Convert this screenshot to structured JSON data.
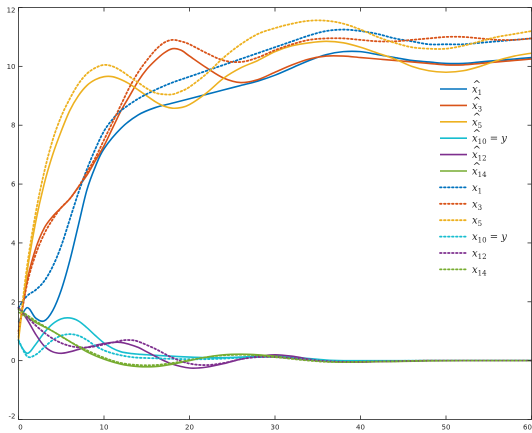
{
  "chart_data": {
    "type": "line",
    "title": "",
    "xlabel": "",
    "ylabel": "",
    "xlim": [
      0,
      60
    ],
    "ylim": [
      -2,
      12
    ],
    "x_ticks": [
      "0",
      "10",
      "20",
      "30",
      "40",
      "50",
      "60"
    ],
    "y_ticks": [
      "-2",
      "0",
      "2",
      "4",
      "6",
      "8",
      "10",
      "12"
    ],
    "grid": false,
    "legend_position": "right",
    "series": [
      {
        "name": "x̂1",
        "base": "x",
        "hat": true,
        "sub": "1",
        "suffix": "",
        "color": "#0072BD",
        "dash": "solid",
        "x": [
          0,
          1,
          2,
          3,
          4,
          5,
          6,
          7,
          8,
          9,
          10,
          12,
          14,
          16,
          18,
          20,
          22,
          24,
          26,
          28,
          30,
          32,
          34,
          36,
          38,
          40,
          42,
          44,
          46,
          48,
          50,
          52,
          54,
          56,
          58,
          60
        ],
        "y": [
          1.3,
          1.8,
          1.45,
          1.35,
          1.7,
          2.4,
          3.4,
          4.6,
          5.8,
          6.6,
          7.2,
          7.9,
          8.35,
          8.6,
          8.75,
          8.9,
          9.05,
          9.2,
          9.35,
          9.5,
          9.7,
          9.95,
          10.2,
          10.4,
          10.5,
          10.5,
          10.4,
          10.3,
          10.2,
          10.15,
          10.1,
          10.1,
          10.15,
          10.2,
          10.25,
          10.3
        ]
      },
      {
        "name": "x̂3",
        "base": "x",
        "hat": true,
        "sub": "3",
        "suffix": "",
        "color": "#D95319",
        "dash": "solid",
        "x": [
          0,
          1,
          2,
          3,
          4,
          5,
          6,
          7,
          8,
          9,
          10,
          11,
          12,
          13,
          14,
          15,
          16,
          17,
          18,
          19,
          20,
          22,
          24,
          26,
          28,
          30,
          32,
          34,
          36,
          38,
          40,
          42,
          44,
          46,
          48,
          50,
          52,
          54,
          56,
          58,
          60
        ],
        "y": [
          0.9,
          2.7,
          3.8,
          4.5,
          4.9,
          5.2,
          5.5,
          5.9,
          6.3,
          6.8,
          7.3,
          7.9,
          8.5,
          9.0,
          9.5,
          9.9,
          10.2,
          10.45,
          10.6,
          10.55,
          10.35,
          9.95,
          9.6,
          9.45,
          9.55,
          9.8,
          10.05,
          10.25,
          10.35,
          10.35,
          10.3,
          10.25,
          10.2,
          10.15,
          10.1,
          10.05,
          10.05,
          10.1,
          10.15,
          10.2,
          10.25
        ]
      },
      {
        "name": "x̂5",
        "base": "x",
        "hat": true,
        "sub": "5",
        "suffix": "",
        "color": "#EDB120",
        "dash": "solid",
        "x": [
          0,
          1,
          2,
          3,
          4,
          5,
          6,
          7,
          8,
          9,
          10,
          11,
          12,
          13,
          14,
          15,
          16,
          17,
          18,
          19,
          20,
          22,
          24,
          26,
          28,
          30,
          32,
          34,
          36,
          38,
          40,
          42,
          44,
          46,
          48,
          50,
          52,
          54,
          56,
          58,
          60
        ],
        "y": [
          0.7,
          3.0,
          4.7,
          6.0,
          7.0,
          7.8,
          8.5,
          9.0,
          9.35,
          9.55,
          9.65,
          9.65,
          9.55,
          9.4,
          9.2,
          9.0,
          8.8,
          8.65,
          8.58,
          8.6,
          8.7,
          9.1,
          9.6,
          9.95,
          10.2,
          10.5,
          10.7,
          10.8,
          10.85,
          10.8,
          10.65,
          10.45,
          10.25,
          10.0,
          9.85,
          9.8,
          9.85,
          10.0,
          10.2,
          10.35,
          10.45
        ]
      },
      {
        "name": "x̂10 = y",
        "base": "x",
        "hat": true,
        "sub": "10",
        "suffix": " = y",
        "color": "#17BECF",
        "dash": "solid",
        "x": [
          0,
          1,
          2,
          3,
          4,
          5,
          6,
          7,
          8,
          9,
          10,
          11,
          12,
          13,
          14,
          15,
          16,
          18,
          20,
          22,
          24,
          26,
          28,
          30,
          32,
          34,
          36,
          38,
          40,
          42,
          44,
          46,
          48,
          50,
          52,
          54,
          56,
          58,
          60
        ],
        "y": [
          0.65,
          0.25,
          0.55,
          0.95,
          1.25,
          1.42,
          1.45,
          1.35,
          1.12,
          0.85,
          0.6,
          0.42,
          0.3,
          0.25,
          0.22,
          0.2,
          0.18,
          0.15,
          0.12,
          0.1,
          0.1,
          0.12,
          0.15,
          0.16,
          0.13,
          0.07,
          0.02,
          0.0,
          0.0,
          0.0,
          0.0,
          0.0,
          0.0,
          0.0,
          0.0,
          0.0,
          0.0,
          0.0,
          0.0
        ]
      },
      {
        "name": "x̂12",
        "base": "x",
        "hat": true,
        "sub": "12",
        "suffix": "",
        "color": "#7E2F8E",
        "dash": "solid",
        "x": [
          0,
          1,
          2,
          3,
          4,
          5,
          6,
          7,
          8,
          9,
          10,
          11,
          12,
          13,
          14,
          15,
          16,
          17,
          18,
          19,
          20,
          21,
          22,
          24,
          26,
          28,
          30,
          32,
          34,
          36,
          38,
          40,
          42,
          44,
          46,
          48,
          50,
          52,
          54,
          56,
          58,
          60
        ],
        "y": [
          1.8,
          1.4,
          0.9,
          0.5,
          0.3,
          0.25,
          0.3,
          0.38,
          0.45,
          0.52,
          0.58,
          0.62,
          0.62,
          0.55,
          0.45,
          0.3,
          0.15,
          0.0,
          -0.12,
          -0.2,
          -0.25,
          -0.25,
          -0.22,
          -0.1,
          0.05,
          0.15,
          0.2,
          0.15,
          0.05,
          -0.02,
          -0.05,
          -0.05,
          -0.03,
          -0.02,
          -0.01,
          0.0,
          0.0,
          0.0,
          0.0,
          0.0,
          0.0,
          0.0
        ]
      },
      {
        "name": "x̂14",
        "base": "x",
        "hat": true,
        "sub": "14",
        "suffix": "",
        "color": "#77AC30",
        "dash": "solid",
        "x": [
          0,
          2,
          4,
          6,
          8,
          10,
          12,
          14,
          16,
          18,
          20,
          22,
          24,
          26,
          28,
          30,
          32,
          34,
          36,
          38,
          40,
          44,
          48,
          52,
          56,
          60
        ],
        "y": [
          1.65,
          1.3,
          1.0,
          0.65,
          0.3,
          0.05,
          -0.12,
          -0.2,
          -0.2,
          -0.12,
          0.0,
          0.12,
          0.2,
          0.22,
          0.2,
          0.15,
          0.08,
          0.02,
          -0.03,
          -0.05,
          -0.05,
          -0.03,
          -0.01,
          0.0,
          0.0,
          0.0
        ]
      },
      {
        "name": "x1",
        "base": "x",
        "hat": false,
        "sub": "1",
        "suffix": "",
        "color": "#0072BD",
        "dash": "dotted",
        "x": [
          0,
          1,
          2,
          3,
          4,
          5,
          6,
          7,
          8,
          9,
          10,
          11,
          12,
          14,
          16,
          18,
          20,
          22,
          24,
          26,
          28,
          30,
          32,
          34,
          36,
          38,
          40,
          42,
          44,
          46,
          48,
          50,
          52,
          54,
          56,
          58,
          60
        ],
        "y": [
          1.8,
          2.2,
          2.4,
          2.7,
          3.2,
          3.9,
          4.8,
          5.7,
          6.5,
          7.2,
          7.8,
          8.2,
          8.5,
          8.9,
          9.2,
          9.45,
          9.65,
          9.85,
          10.05,
          10.25,
          10.45,
          10.65,
          10.85,
          11.05,
          11.2,
          11.25,
          11.2,
          11.1,
          10.95,
          10.85,
          10.75,
          10.75,
          10.75,
          10.8,
          10.85,
          10.9,
          10.95
        ]
      },
      {
        "name": "x3",
        "base": "x",
        "hat": false,
        "sub": "3",
        "suffix": "",
        "color": "#D95319",
        "dash": "dotted",
        "x": [
          0,
          1,
          2,
          3,
          4,
          5,
          6,
          7,
          8,
          9,
          10,
          11,
          12,
          13,
          14,
          15,
          16,
          17,
          18,
          19,
          20,
          22,
          24,
          26,
          28,
          30,
          32,
          34,
          36,
          38,
          40,
          42,
          44,
          46,
          48,
          50,
          52,
          54,
          56,
          58,
          60
        ],
        "y": [
          1.0,
          2.6,
          3.6,
          4.3,
          4.8,
          5.2,
          5.5,
          5.9,
          6.4,
          6.9,
          7.5,
          8.1,
          8.7,
          9.3,
          9.8,
          10.2,
          10.55,
          10.8,
          10.9,
          10.85,
          10.75,
          10.45,
          10.2,
          10.15,
          10.3,
          10.55,
          10.75,
          10.9,
          10.95,
          10.95,
          10.9,
          10.85,
          10.85,
          10.9,
          10.95,
          11.0,
          11.0,
          10.95,
          10.9,
          10.9,
          10.95
        ]
      },
      {
        "name": "x5",
        "base": "x",
        "hat": false,
        "sub": "5",
        "suffix": "",
        "color": "#EDB120",
        "dash": "dotted",
        "x": [
          0,
          1,
          2,
          3,
          4,
          5,
          6,
          7,
          8,
          9,
          10,
          11,
          12,
          13,
          14,
          15,
          16,
          17,
          18,
          19,
          20,
          22,
          24,
          26,
          28,
          30,
          32,
          34,
          36,
          38,
          40,
          42,
          44,
          46,
          48,
          50,
          52,
          54,
          56,
          58,
          60
        ],
        "y": [
          0.8,
          3.2,
          5.0,
          6.4,
          7.5,
          8.3,
          8.9,
          9.4,
          9.75,
          9.95,
          10.05,
          10.0,
          9.85,
          9.65,
          9.45,
          9.25,
          9.1,
          9.05,
          9.05,
          9.15,
          9.3,
          9.75,
          10.3,
          10.75,
          11.1,
          11.3,
          11.45,
          11.55,
          11.55,
          11.45,
          11.25,
          11.0,
          10.8,
          10.65,
          10.6,
          10.6,
          10.7,
          10.85,
          11.0,
          11.1,
          11.2
        ]
      },
      {
        "name": "x10 = y",
        "base": "x",
        "hat": false,
        "sub": "10",
        "suffix": " = y",
        "color": "#17BECF",
        "dash": "dotted",
        "x": [
          0,
          1,
          2,
          3,
          4,
          5,
          6,
          7,
          8,
          9,
          10,
          11,
          12,
          13,
          14,
          16,
          18,
          20,
          22,
          24,
          26,
          28,
          30,
          32,
          34,
          36,
          38,
          40,
          44,
          48,
          52,
          56,
          60
        ],
        "y": [
          0.7,
          0.15,
          0.2,
          0.45,
          0.7,
          0.85,
          0.9,
          0.85,
          0.7,
          0.5,
          0.35,
          0.25,
          0.18,
          0.13,
          0.1,
          0.08,
          0.06,
          0.05,
          0.05,
          0.07,
          0.1,
          0.12,
          0.12,
          0.08,
          0.03,
          0.0,
          -0.02,
          -0.02,
          -0.01,
          0.0,
          0.0,
          0.0,
          0.0
        ]
      },
      {
        "name": "x12",
        "base": "x",
        "hat": false,
        "sub": "12",
        "suffix": "",
        "color": "#7E2F8E",
        "dash": "dotted",
        "x": [
          0,
          2,
          4,
          6,
          8,
          10,
          12,
          13,
          14,
          16,
          18,
          20,
          22,
          24,
          26,
          28,
          30,
          32,
          34,
          36,
          38,
          40,
          44,
          48,
          52,
          56,
          60
        ],
        "y": [
          1.8,
          1.2,
          0.75,
          0.5,
          0.45,
          0.55,
          0.68,
          0.7,
          0.65,
          0.4,
          0.1,
          -0.1,
          -0.15,
          -0.08,
          0.05,
          0.12,
          0.12,
          0.08,
          0.02,
          -0.02,
          -0.04,
          -0.04,
          -0.02,
          0.0,
          0.0,
          0.0,
          0.0
        ]
      },
      {
        "name": "x14",
        "base": "x",
        "hat": false,
        "sub": "14",
        "suffix": "",
        "color": "#77AC30",
        "dash": "dotted",
        "x": [
          0,
          2,
          4,
          6,
          8,
          10,
          12,
          14,
          16,
          18,
          20,
          22,
          24,
          26,
          28,
          30,
          32,
          34,
          36,
          38,
          40,
          44,
          48,
          52,
          56,
          60
        ],
        "y": [
          1.75,
          1.35,
          1.0,
          0.65,
          0.35,
          0.1,
          -0.08,
          -0.15,
          -0.15,
          -0.08,
          0.02,
          0.12,
          0.18,
          0.2,
          0.18,
          0.12,
          0.06,
          0.0,
          -0.04,
          -0.05,
          -0.04,
          -0.02,
          0.0,
          0.0,
          0.0,
          0.0
        ]
      }
    ]
  }
}
